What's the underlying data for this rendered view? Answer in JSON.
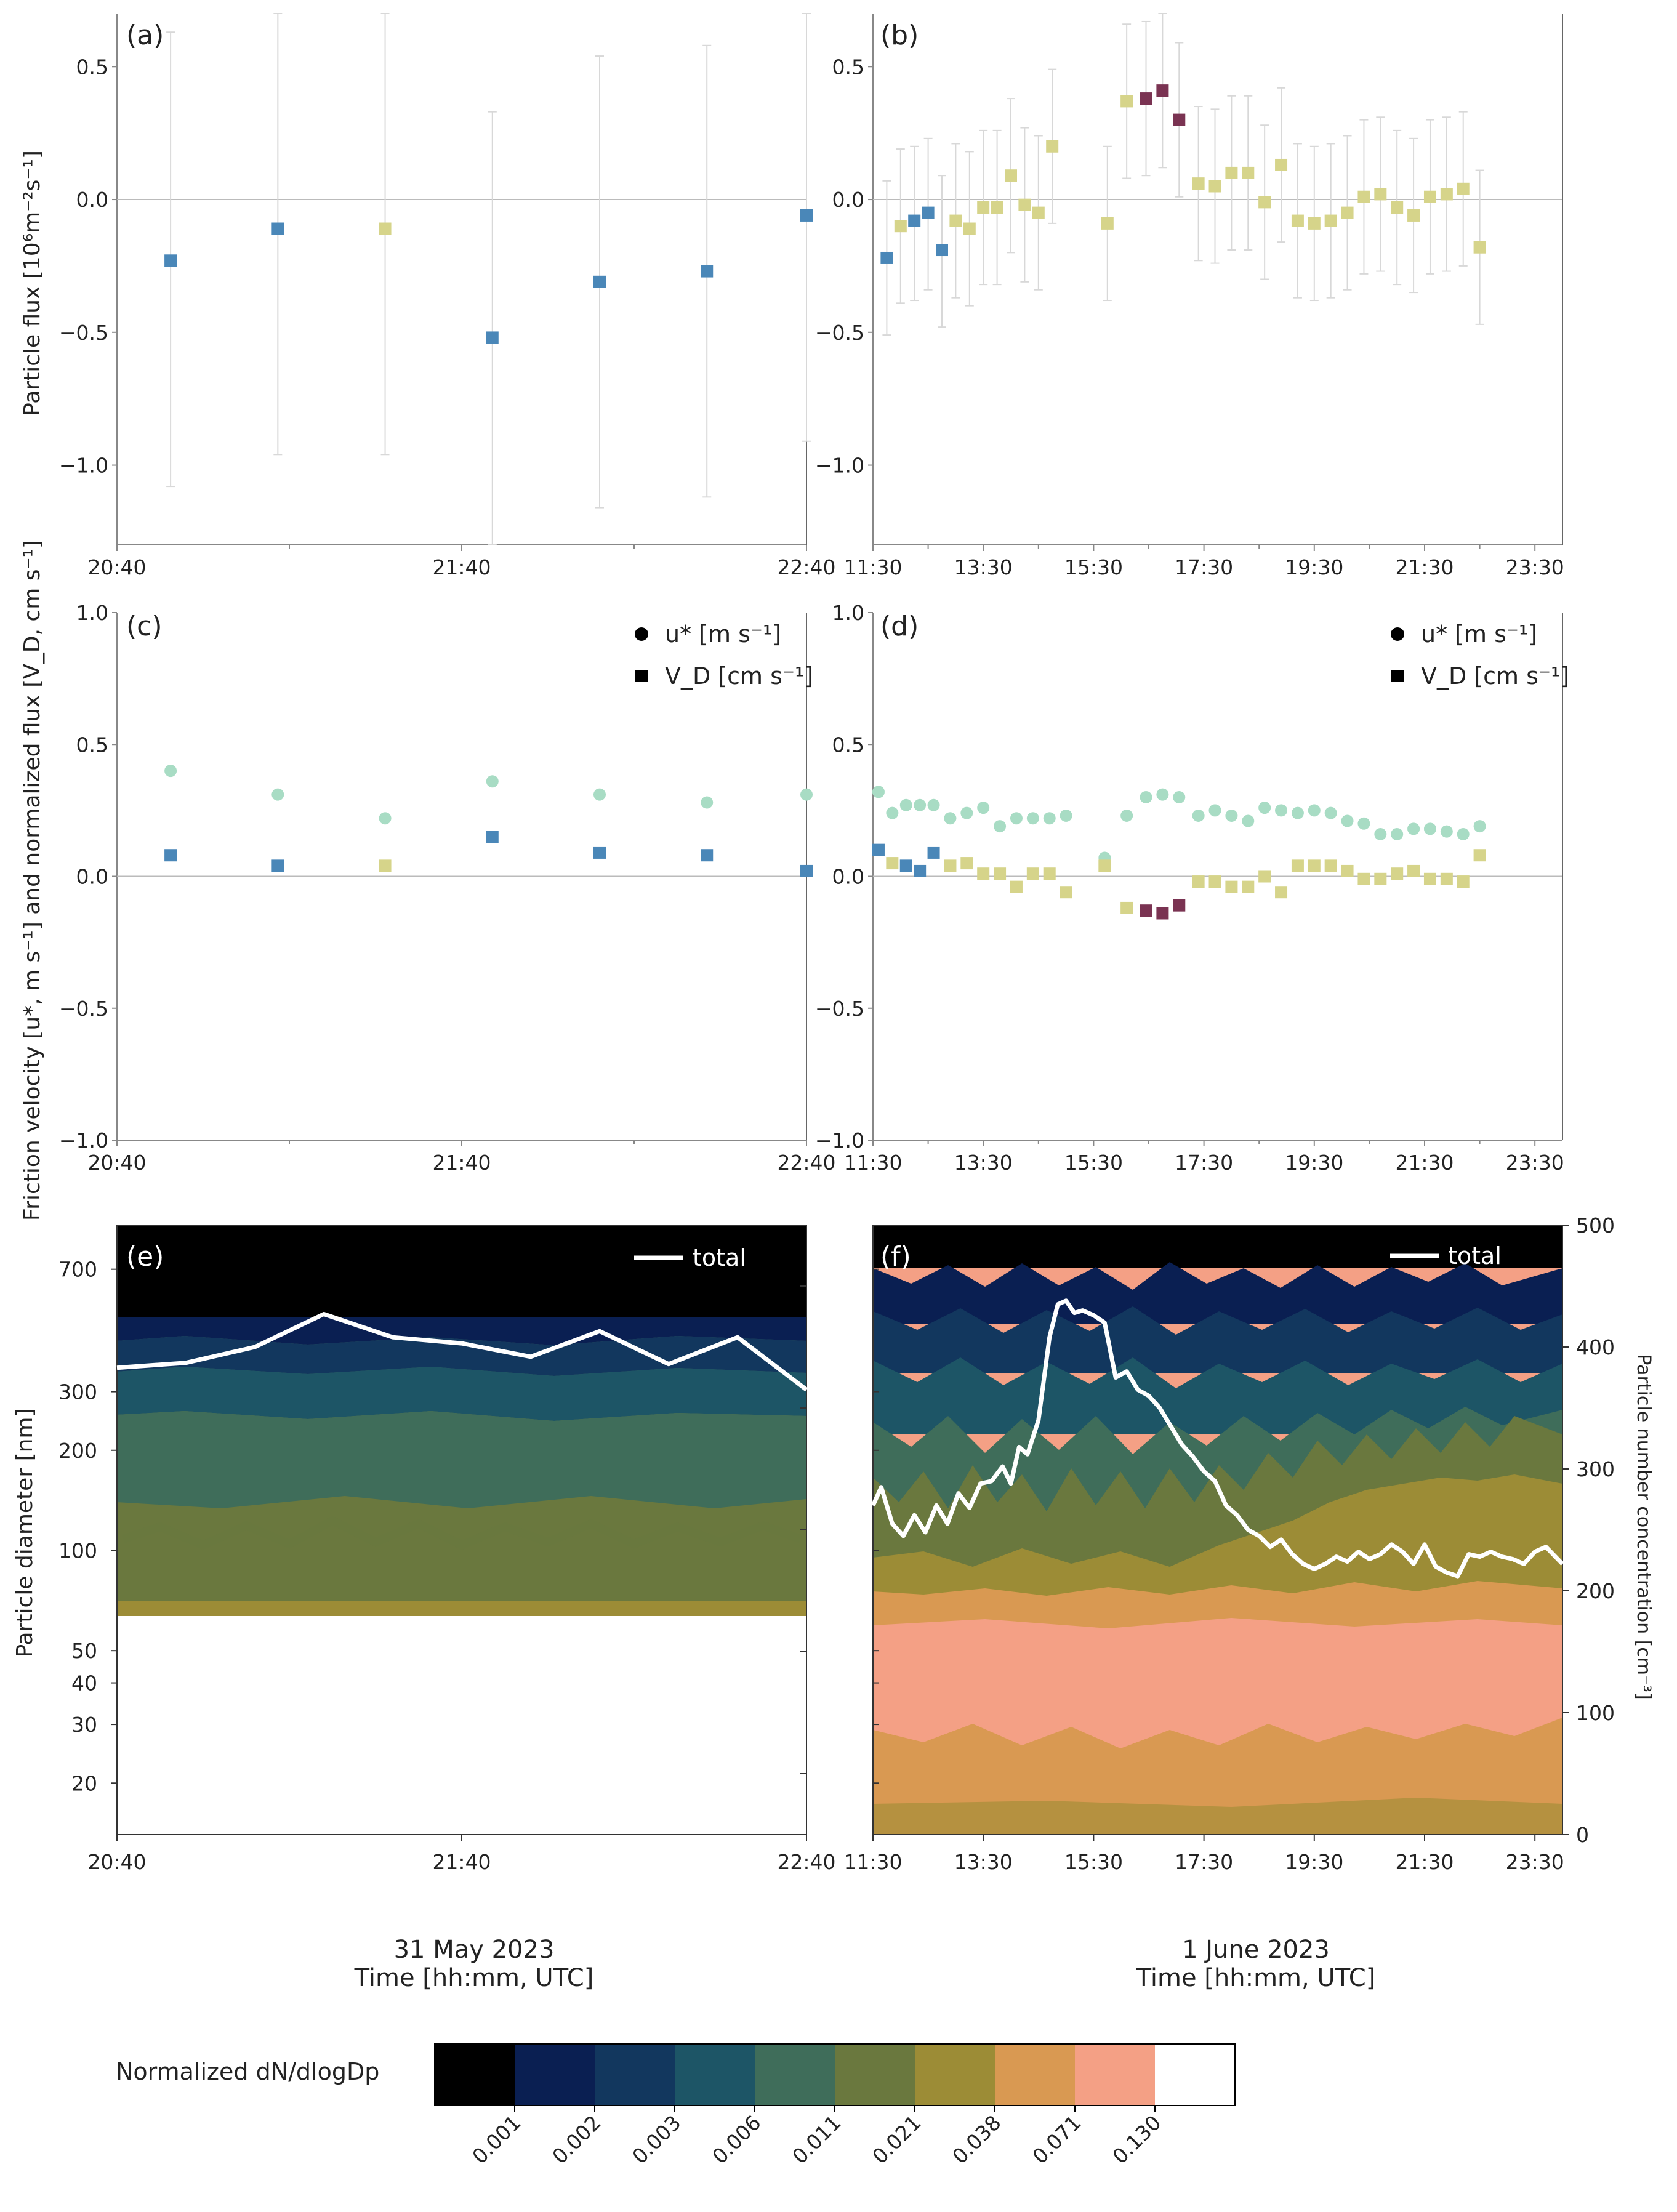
{
  "chart_data": [
    {
      "id": "a",
      "panel_label": "(a)",
      "type": "scatter",
      "ylabel": "Particle flux [10⁶m⁻²s⁻¹]",
      "xlim": [
        0,
        9
      ],
      "ylim": [
        -1.3,
        0.7
      ],
      "xticks": [
        {
          "at": 0,
          "label": "20:40"
        },
        {
          "at": 4.5,
          "label": "21:40"
        },
        {
          "at": 9,
          "label": "22:40"
        }
      ],
      "yticks": [
        {
          "at": 0.5,
          "label": "0.5"
        },
        {
          "at": 0,
          "label": "0.0"
        },
        {
          "at": -0.5,
          "label": "−0.5"
        },
        {
          "at": -1.0,
          "label": "−1.0"
        }
      ],
      "points": [
        {
          "x": 0.7,
          "y": -0.23,
          "lo": -1.08,
          "hi": 0.63,
          "c": "blue"
        },
        {
          "x": 2.1,
          "y": -0.11,
          "lo": -0.96,
          "hi": 0.7,
          "c": "blue"
        },
        {
          "x": 3.5,
          "y": -0.11,
          "lo": -0.96,
          "hi": 0.7,
          "c": "yellow"
        },
        {
          "x": 4.9,
          "y": -0.52,
          "lo": -1.3,
          "hi": 0.33,
          "c": "blue"
        },
        {
          "x": 6.3,
          "y": -0.31,
          "lo": -1.16,
          "hi": 0.54,
          "c": "blue"
        },
        {
          "x": 7.7,
          "y": -0.27,
          "lo": -1.12,
          "hi": 0.58,
          "c": "blue"
        },
        {
          "x": 9.0,
          "y": -0.06,
          "lo": -0.91,
          "hi": 0.7,
          "c": "blue"
        }
      ]
    },
    {
      "id": "b",
      "panel_label": "(b)",
      "type": "scatter",
      "xlim": [
        0,
        12.5
      ],
      "ylim": [
        -1.3,
        0.7
      ],
      "xticks": [
        {
          "at": 0,
          "label": "11:30"
        },
        {
          "at": 2,
          "label": "13:30"
        },
        {
          "at": 4,
          "label": "15:30"
        },
        {
          "at": 6,
          "label": "17:30"
        },
        {
          "at": 8,
          "label": "19:30"
        },
        {
          "at": 10,
          "label": "21:30"
        },
        {
          "at": 12,
          "label": "23:30"
        }
      ],
      "yticks": [
        {
          "at": 0.5,
          "label": "0.5"
        },
        {
          "at": 0,
          "label": "0.0"
        },
        {
          "at": -0.5,
          "label": "−0.5"
        },
        {
          "at": -1.0,
          "label": "−1.0"
        }
      ],
      "points": [
        {
          "x": 0.25,
          "y": -0.22,
          "lo": -0.51,
          "hi": 0.07,
          "c": "blue"
        },
        {
          "x": 0.5,
          "y": -0.1,
          "lo": -0.39,
          "hi": 0.19,
          "c": "yellow"
        },
        {
          "x": 0.75,
          "y": -0.08,
          "lo": -0.38,
          "hi": 0.2,
          "c": "blue"
        },
        {
          "x": 1.0,
          "y": -0.05,
          "lo": -0.34,
          "hi": 0.23,
          "c": "blue"
        },
        {
          "x": 1.25,
          "y": -0.19,
          "lo": -0.48,
          "hi": 0.09,
          "c": "blue"
        },
        {
          "x": 1.5,
          "y": -0.08,
          "lo": -0.37,
          "hi": 0.21,
          "c": "yellow"
        },
        {
          "x": 1.75,
          "y": -0.11,
          "lo": -0.4,
          "hi": 0.18,
          "c": "yellow"
        },
        {
          "x": 2.0,
          "y": -0.03,
          "lo": -0.32,
          "hi": 0.26,
          "c": "yellow"
        },
        {
          "x": 2.25,
          "y": -0.03,
          "lo": -0.32,
          "hi": 0.26,
          "c": "yellow"
        },
        {
          "x": 2.5,
          "y": 0.09,
          "lo": -0.2,
          "hi": 0.38,
          "c": "yellow"
        },
        {
          "x": 2.75,
          "y": -0.02,
          "lo": -0.31,
          "hi": 0.27,
          "c": "yellow"
        },
        {
          "x": 3.0,
          "y": -0.05,
          "lo": -0.34,
          "hi": 0.24,
          "c": "yellow"
        },
        {
          "x": 3.25,
          "y": 0.2,
          "lo": -0.09,
          "hi": 0.49,
          "c": "yellow"
        },
        {
          "x": 4.25,
          "y": -0.09,
          "lo": -0.38,
          "hi": 0.2,
          "c": "yellow"
        },
        {
          "x": 4.6,
          "y": 0.37,
          "lo": 0.08,
          "hi": 0.66,
          "c": "yellow"
        },
        {
          "x": 4.95,
          "y": 0.38,
          "lo": 0.09,
          "hi": 0.67,
          "c": "purple"
        },
        {
          "x": 5.25,
          "y": 0.41,
          "lo": 0.12,
          "hi": 0.7,
          "c": "purple"
        },
        {
          "x": 5.55,
          "y": 0.3,
          "lo": 0.01,
          "hi": 0.59,
          "c": "purple"
        },
        {
          "x": 5.9,
          "y": 0.06,
          "lo": -0.23,
          "hi": 0.35,
          "c": "yellow"
        },
        {
          "x": 6.2,
          "y": 0.05,
          "lo": -0.24,
          "hi": 0.34,
          "c": "yellow"
        },
        {
          "x": 6.5,
          "y": 0.1,
          "lo": -0.19,
          "hi": 0.39,
          "c": "yellow"
        },
        {
          "x": 6.8,
          "y": 0.1,
          "lo": -0.19,
          "hi": 0.39,
          "c": "yellow"
        },
        {
          "x": 7.1,
          "y": -0.01,
          "lo": -0.3,
          "hi": 0.28,
          "c": "yellow"
        },
        {
          "x": 7.4,
          "y": 0.13,
          "lo": -0.16,
          "hi": 0.42,
          "c": "yellow"
        },
        {
          "x": 7.7,
          "y": -0.08,
          "lo": -0.37,
          "hi": 0.21,
          "c": "yellow"
        },
        {
          "x": 8.0,
          "y": -0.09,
          "lo": -0.38,
          "hi": 0.2,
          "c": "yellow"
        },
        {
          "x": 8.3,
          "y": -0.08,
          "lo": -0.37,
          "hi": 0.21,
          "c": "yellow"
        },
        {
          "x": 8.6,
          "y": -0.05,
          "lo": -0.34,
          "hi": 0.24,
          "c": "yellow"
        },
        {
          "x": 8.9,
          "y": 0.01,
          "lo": -0.28,
          "hi": 0.3,
          "c": "yellow"
        },
        {
          "x": 9.2,
          "y": 0.02,
          "lo": -0.27,
          "hi": 0.31,
          "c": "yellow"
        },
        {
          "x": 9.5,
          "y": -0.03,
          "lo": -0.32,
          "hi": 0.26,
          "c": "yellow"
        },
        {
          "x": 9.8,
          "y": -0.06,
          "lo": -0.35,
          "hi": 0.23,
          "c": "yellow"
        },
        {
          "x": 10.1,
          "y": 0.01,
          "lo": -0.28,
          "hi": 0.3,
          "c": "yellow"
        },
        {
          "x": 10.4,
          "y": 0.02,
          "lo": -0.27,
          "hi": 0.31,
          "c": "yellow"
        },
        {
          "x": 10.7,
          "y": 0.04,
          "lo": -0.25,
          "hi": 0.33,
          "c": "yellow"
        },
        {
          "x": 11.0,
          "y": -0.18,
          "lo": -0.47,
          "hi": 0.11,
          "c": "yellow"
        }
      ]
    },
    {
      "id": "c",
      "panel_label": "(c)",
      "type": "scatter",
      "ylabel": "Friction velocity [u*, m s⁻¹] and normalized flux [V_D, cm s⁻¹]",
      "legend": [
        "u* [m s⁻¹]",
        "V_D [cm s⁻¹]"
      ],
      "xlim": [
        0,
        9
      ],
      "ylim": [
        -1.0,
        1.0
      ],
      "xticks": [
        {
          "at": 0,
          "label": "20:40"
        },
        {
          "at": 4.5,
          "label": "21:40"
        },
        {
          "at": 9,
          "label": "22:40"
        }
      ],
      "yticks": [
        {
          "at": 1.0,
          "label": "1.0"
        },
        {
          "at": 0.5,
          "label": "0.5"
        },
        {
          "at": 0,
          "label": "0.0"
        },
        {
          "at": -0.5,
          "label": "−0.5"
        },
        {
          "at": -1.0,
          "label": "−1.0"
        }
      ],
      "ustar": [
        [
          0.7,
          0.4
        ],
        [
          2.1,
          0.31
        ],
        [
          3.5,
          0.22
        ],
        [
          4.9,
          0.36
        ],
        [
          6.3,
          0.31
        ],
        [
          7.7,
          0.28
        ],
        [
          9.0,
          0.31
        ]
      ],
      "vd": [
        [
          0.7,
          0.08,
          "blue"
        ],
        [
          2.1,
          0.04,
          "blue"
        ],
        [
          3.5,
          0.04,
          "yellow"
        ],
        [
          4.9,
          0.15,
          "blue"
        ],
        [
          6.3,
          0.09,
          "blue"
        ],
        [
          7.7,
          0.08,
          "blue"
        ],
        [
          9.0,
          0.02,
          "blue"
        ]
      ]
    },
    {
      "id": "d",
      "panel_label": "(d)",
      "type": "scatter",
      "legend": [
        "u* [m s⁻¹]",
        "V_D [cm s⁻¹]"
      ],
      "xlim": [
        0,
        12.5
      ],
      "ylim": [
        -1.0,
        1.0
      ],
      "xticks": [
        {
          "at": 0,
          "label": "11:30"
        },
        {
          "at": 2,
          "label": "13:30"
        },
        {
          "at": 4,
          "label": "15:30"
        },
        {
          "at": 6,
          "label": "17:30"
        },
        {
          "at": 8,
          "label": "19:30"
        },
        {
          "at": 10,
          "label": "21:30"
        },
        {
          "at": 12,
          "label": "23:30"
        }
      ],
      "yticks": [
        {
          "at": 1.0,
          "label": "1.0"
        },
        {
          "at": 0.5,
          "label": "0.5"
        },
        {
          "at": 0,
          "label": "0.0"
        },
        {
          "at": -0.5,
          "label": "−0.5"
        },
        {
          "at": -1.0,
          "label": "−1.0"
        }
      ],
      "ustar": [
        [
          0.1,
          0.32
        ],
        [
          0.35,
          0.24
        ],
        [
          0.6,
          0.27
        ],
        [
          0.85,
          0.27
        ],
        [
          1.1,
          0.27
        ],
        [
          1.4,
          0.22
        ],
        [
          1.7,
          0.24
        ],
        [
          2.0,
          0.26
        ],
        [
          2.3,
          0.19
        ],
        [
          2.6,
          0.22
        ],
        [
          2.9,
          0.22
        ],
        [
          3.2,
          0.22
        ],
        [
          3.5,
          0.23
        ],
        [
          4.2,
          0.07
        ],
        [
          4.6,
          0.23
        ],
        [
          4.95,
          0.3
        ],
        [
          5.25,
          0.31
        ],
        [
          5.55,
          0.3
        ],
        [
          5.9,
          0.23
        ],
        [
          6.2,
          0.25
        ],
        [
          6.5,
          0.23
        ],
        [
          6.8,
          0.21
        ],
        [
          7.1,
          0.26
        ],
        [
          7.4,
          0.25
        ],
        [
          7.7,
          0.24
        ],
        [
          8.0,
          0.25
        ],
        [
          8.3,
          0.24
        ],
        [
          8.6,
          0.21
        ],
        [
          8.9,
          0.2
        ],
        [
          9.2,
          0.16
        ],
        [
          9.5,
          0.16
        ],
        [
          9.8,
          0.18
        ],
        [
          10.1,
          0.18
        ],
        [
          10.4,
          0.17
        ],
        [
          10.7,
          0.16
        ],
        [
          11.0,
          0.19
        ]
      ],
      "vd": [
        [
          0.1,
          0.1,
          "blue"
        ],
        [
          0.35,
          0.05,
          "yellow"
        ],
        [
          0.6,
          0.04,
          "blue"
        ],
        [
          0.85,
          0.02,
          "blue"
        ],
        [
          1.1,
          0.09,
          "blue"
        ],
        [
          1.4,
          0.04,
          "yellow"
        ],
        [
          1.7,
          0.05,
          "yellow"
        ],
        [
          2.0,
          0.01,
          "yellow"
        ],
        [
          2.3,
          0.01,
          "yellow"
        ],
        [
          2.6,
          -0.04,
          "yellow"
        ],
        [
          2.9,
          0.01,
          "yellow"
        ],
        [
          3.2,
          0.01,
          "yellow"
        ],
        [
          3.5,
          -0.06,
          "yellow"
        ],
        [
          4.2,
          0.04,
          "yellow"
        ],
        [
          4.6,
          -0.12,
          "yellow"
        ],
        [
          4.95,
          -0.13,
          "purple"
        ],
        [
          5.25,
          -0.14,
          "purple"
        ],
        [
          5.55,
          -0.11,
          "purple"
        ],
        [
          5.9,
          -0.02,
          "yellow"
        ],
        [
          6.2,
          -0.02,
          "yellow"
        ],
        [
          6.5,
          -0.04,
          "yellow"
        ],
        [
          6.8,
          -0.04,
          "yellow"
        ],
        [
          7.1,
          0.0,
          "yellow"
        ],
        [
          7.4,
          -0.06,
          "yellow"
        ],
        [
          7.7,
          0.04,
          "yellow"
        ],
        [
          8.0,
          0.04,
          "yellow"
        ],
        [
          8.3,
          0.04,
          "yellow"
        ],
        [
          8.6,
          0.02,
          "yellow"
        ],
        [
          8.9,
          -0.01,
          "yellow"
        ],
        [
          9.2,
          -0.01,
          "yellow"
        ],
        [
          9.5,
          0.01,
          "yellow"
        ],
        [
          9.8,
          0.02,
          "yellow"
        ],
        [
          10.1,
          -0.01,
          "yellow"
        ],
        [
          10.4,
          -0.01,
          "yellow"
        ],
        [
          10.7,
          -0.02,
          "yellow"
        ],
        [
          11.0,
          0.08,
          "yellow"
        ]
      ]
    },
    {
      "id": "e",
      "panel_label": "(e)",
      "type": "heatmap",
      "ylabel": "Particle diameter [nm]",
      "date": "31 May 2023",
      "xlabel": "Time [hh:mm, UTC]",
      "legend": [
        "total"
      ],
      "xlim": [
        0,
        9
      ],
      "xticks": [
        {
          "at": 0,
          "label": "20:40"
        },
        {
          "at": 4.5,
          "label": "21:40"
        },
        {
          "at": 9,
          "label": "22:40"
        }
      ],
      "yticks": [
        {
          "at": 700,
          "label": "700"
        },
        {
          "at": 300,
          "label": "300"
        },
        {
          "at": 200,
          "label": "200"
        },
        {
          "at": 100,
          "label": "100"
        },
        {
          "at": 50,
          "label": "50"
        },
        {
          "at": 40,
          "label": "40"
        },
        {
          "at": 30,
          "label": "30"
        },
        {
          "at": 20,
          "label": "20"
        }
      ],
      "total_x": [
        0,
        0.9,
        1.8,
        2.7,
        3.6,
        4.5,
        5.4,
        6.3,
        7.2,
        8.1,
        9.0
      ],
      "total_y": [
        383,
        387,
        400,
        427,
        408,
        403,
        392,
        413,
        386,
        408,
        365
      ]
    },
    {
      "id": "f",
      "panel_label": "(f)",
      "type": "heatmap",
      "date": "1 June 2023",
      "xlabel": "Time [hh:mm, UTC]",
      "ylabel_right": "Particle number concentration [cm⁻³]",
      "legend": [
        "total"
      ],
      "xlim": [
        0,
        12.5
      ],
      "xticks": [
        {
          "at": 0,
          "label": "11:30"
        },
        {
          "at": 2,
          "label": "13:30"
        },
        {
          "at": 4,
          "label": "15:30"
        },
        {
          "at": 6,
          "label": "17:30"
        },
        {
          "at": 8,
          "label": "19:30"
        },
        {
          "at": 10,
          "label": "21:30"
        },
        {
          "at": 12,
          "label": "23:30"
        }
      ],
      "yticks_right": [
        {
          "at": 500,
          "label": "500"
        },
        {
          "at": 400,
          "label": "400"
        },
        {
          "at": 300,
          "label": "300"
        },
        {
          "at": 200,
          "label": "200"
        },
        {
          "at": 100,
          "label": "100"
        },
        {
          "at": 0,
          "label": "0"
        }
      ],
      "total_x": [
        0.0,
        0.15,
        0.35,
        0.55,
        0.75,
        0.95,
        1.15,
        1.35,
        1.55,
        1.75,
        1.95,
        2.15,
        2.35,
        2.5,
        2.65,
        2.8,
        3.0,
        3.2,
        3.35,
        3.5,
        3.65,
        3.8,
        4.0,
        4.2,
        4.4,
        4.6,
        4.8,
        5.0,
        5.2,
        5.4,
        5.6,
        5.8,
        6.0,
        6.2,
        6.4,
        6.6,
        6.8,
        7.0,
        7.2,
        7.4,
        7.6,
        7.8,
        8.0,
        8.2,
        8.4,
        8.6,
        8.8,
        9.0,
        9.2,
        9.4,
        9.6,
        9.8,
        10.0,
        10.2,
        10.4,
        10.6,
        10.8,
        11.0,
        11.2,
        11.4,
        11.6,
        11.8,
        12.0,
        12.2,
        12.5
      ],
      "total_y": [
        270,
        285,
        255,
        245,
        262,
        248,
        270,
        255,
        280,
        268,
        288,
        290,
        302,
        288,
        318,
        312,
        340,
        408,
        435,
        438,
        428,
        430,
        426,
        420,
        375,
        380,
        365,
        360,
        350,
        335,
        320,
        310,
        298,
        290,
        270,
        262,
        250,
        245,
        236,
        242,
        230,
        222,
        218,
        222,
        228,
        224,
        232,
        226,
        230,
        238,
        232,
        222,
        238,
        220,
        215,
        212,
        230,
        228,
        232,
        228,
        226,
        222,
        232,
        236,
        222
      ]
    }
  ],
  "colorbar": {
    "label": "Normalized dN/dlogDp",
    "colors": [
      "#000000",
      "#0a1f52",
      "#12375e",
      "#1d5566",
      "#3f6d5a",
      "#6a783e",
      "#9c8c36",
      "#d99952",
      "#f4a085",
      "#ffffff"
    ],
    "ticks": [
      "0.001",
      "0.002",
      "0.003",
      "0.006",
      "0.011",
      "0.021",
      "0.038",
      "0.071",
      "0.130"
    ]
  },
  "colors": {
    "blue": "#4a87b8",
    "yellow": "#d6d48a",
    "purple": "#7a3352",
    "ustar": "#a8dcc4",
    "errorbar": "#d8d8d8"
  }
}
